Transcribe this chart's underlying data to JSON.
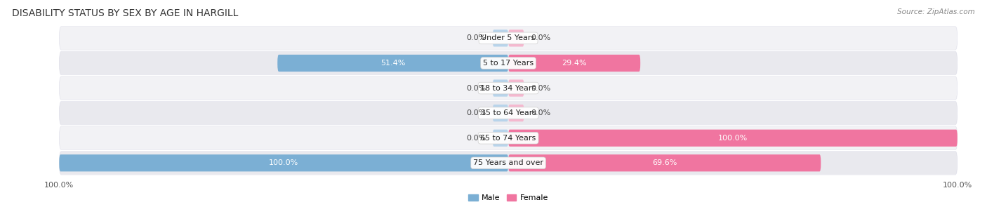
{
  "title": "DISABILITY STATUS BY SEX BY AGE IN HARGILL",
  "source": "Source: ZipAtlas.com",
  "categories": [
    "Under 5 Years",
    "5 to 17 Years",
    "18 to 34 Years",
    "35 to 64 Years",
    "65 to 74 Years",
    "75 Years and over"
  ],
  "male_values": [
    0.0,
    51.4,
    0.0,
    0.0,
    0.0,
    100.0
  ],
  "female_values": [
    0.0,
    29.4,
    0.0,
    0.0,
    100.0,
    69.6
  ],
  "male_color": "#7bafd4",
  "female_color": "#f075a0",
  "male_color_light": "#b8d4eb",
  "female_color_light": "#f5b8cf",
  "male_label": "Male",
  "female_label": "Female",
  "max_val": 100.0,
  "title_fontsize": 10,
  "label_fontsize": 8,
  "tick_fontsize": 8,
  "source_fontsize": 7.5,
  "row_bg": "#f0f0f2",
  "row_bg_alt": "#e8e8ec"
}
